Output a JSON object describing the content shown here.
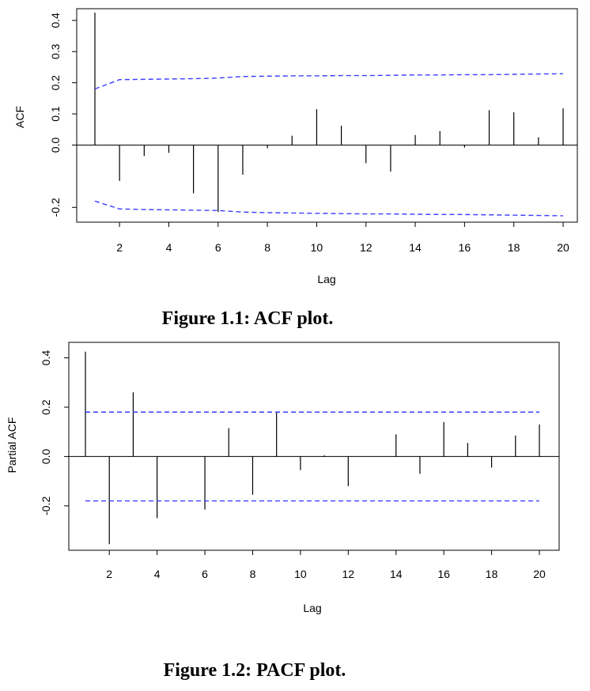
{
  "chart_data": [
    {
      "type": "bar",
      "xlabel": "Lag",
      "ylabel": "ACF",
      "caption": "Figure 1.1: ACF plot.",
      "xlim": [
        1,
        20
      ],
      "ylim": [
        -0.25,
        0.43
      ],
      "x_ticks": [
        2,
        4,
        6,
        8,
        10,
        12,
        14,
        16,
        18,
        20
      ],
      "y_ticks": [
        -0.2,
        0.0,
        0.1,
        0.2,
        0.3,
        0.4
      ],
      "y_tick_labels": [
        "-0.2",
        "0.0",
        "0.1",
        "0.2",
        "0.3",
        "0.4"
      ],
      "x": [
        1,
        2,
        3,
        4,
        5,
        6,
        7,
        8,
        9,
        10,
        11,
        12,
        13,
        14,
        15,
        16,
        17,
        18,
        19,
        20
      ],
      "values": [
        0.425,
        -0.115,
        -0.035,
        -0.025,
        -0.155,
        -0.215,
        -0.095,
        -0.01,
        0.03,
        0.115,
        0.062,
        -0.058,
        -0.085,
        0.032,
        0.045,
        -0.008,
        0.112,
        0.105,
        0.025,
        0.118
      ],
      "confidence_band": {
        "color": "#3b3bff",
        "upper": [
          0.18,
          0.21,
          0.211,
          0.212,
          0.213,
          0.215,
          0.22,
          0.221,
          0.222,
          0.222,
          0.223,
          0.223,
          0.224,
          0.225,
          0.225,
          0.226,
          0.226,
          0.227,
          0.228,
          0.229
        ],
        "lower": [
          -0.18,
          -0.205,
          -0.207,
          -0.208,
          -0.209,
          -0.21,
          -0.215,
          -0.217,
          -0.218,
          -0.219,
          -0.22,
          -0.221,
          -0.221,
          -0.222,
          -0.223,
          -0.223,
          -0.224,
          -0.225,
          -0.226,
          -0.227
        ]
      }
    },
    {
      "type": "bar",
      "xlabel": "Lag",
      "ylabel": "Partial ACF",
      "caption": "Figure 1.2: PACF plot.",
      "xlim": [
        1,
        20
      ],
      "ylim": [
        -0.38,
        0.45
      ],
      "x_ticks": [
        2,
        4,
        6,
        8,
        10,
        12,
        14,
        16,
        18,
        20
      ],
      "y_ticks": [
        -0.2,
        0.0,
        0.2,
        0.4
      ],
      "y_tick_labels": [
        "-0.2",
        "0.0",
        "0.2",
        "0.4"
      ],
      "x": [
        1,
        2,
        3,
        4,
        5,
        6,
        7,
        8,
        9,
        10,
        11,
        12,
        13,
        14,
        15,
        16,
        17,
        18,
        19,
        20
      ],
      "values": [
        0.425,
        -0.355,
        0.26,
        -0.25,
        0.0,
        -0.215,
        0.115,
        -0.155,
        0.18,
        -0.055,
        0.005,
        -0.12,
        0.0,
        0.09,
        -0.07,
        0.14,
        0.055,
        -0.045,
        0.085,
        0.13
      ],
      "confidence_band": {
        "color": "#3b3bff",
        "upper": [
          0.18,
          0.18,
          0.18,
          0.18,
          0.18,
          0.18,
          0.18,
          0.18,
          0.18,
          0.18,
          0.18,
          0.18,
          0.18,
          0.18,
          0.18,
          0.18,
          0.18,
          0.18,
          0.18,
          0.18
        ],
        "lower": [
          -0.18,
          -0.18,
          -0.18,
          -0.18,
          -0.18,
          -0.18,
          -0.18,
          -0.18,
          -0.18,
          -0.18,
          -0.18,
          -0.18,
          -0.18,
          -0.18,
          -0.18,
          -0.18,
          -0.18,
          -0.18,
          -0.18,
          -0.18
        ]
      }
    }
  ]
}
